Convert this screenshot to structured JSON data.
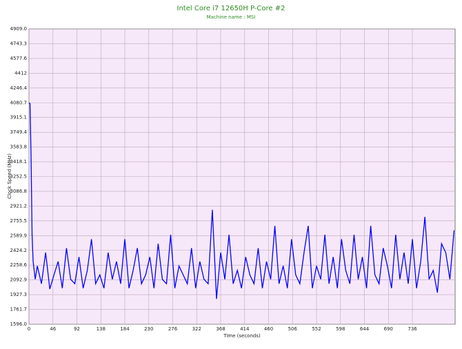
{
  "chart_data": {
    "type": "line",
    "title": "Intel Core i7 12650H P-Core #2",
    "subtitle": "Machine name : MSI",
    "x_label": "Time (seconds)",
    "y_label": "Clock Speed (MHz)",
    "color": "#0000ff",
    "grid": true,
    "xlim": [
      0,
      818
    ],
    "xticks": [
      0,
      46,
      92,
      138,
      184,
      230,
      276,
      322,
      368,
      414,
      460,
      506,
      552,
      598,
      644,
      690,
      736
    ],
    "ylim": [
      1596,
      4909
    ],
    "yticks": [
      {
        "value": 1596,
        "label": "1596.0"
      },
      1761.7,
      1927.3,
      2092.9,
      2258.6,
      2424.2,
      2589.9,
      2755.5,
      2921.2,
      3086.8,
      3252.5,
      3418.1,
      3583.8,
      3749.4,
      3915.1,
      4080.7,
      4246.4,
      4412,
      4577.6,
      4743.3,
      {
        "value": 4909,
        "label": "4909.0"
      }
    ],
    "x": [
      0,
      2,
      4,
      6,
      8,
      12,
      16,
      24,
      32,
      40,
      48,
      56,
      64,
      72,
      80,
      88,
      96,
      104,
      112,
      120,
      128,
      136,
      144,
      152,
      160,
      168,
      176,
      184,
      192,
      200,
      208,
      216,
      224,
      232,
      240,
      248,
      256,
      264,
      272,
      280,
      288,
      296,
      304,
      312,
      320,
      328,
      336,
      344,
      352,
      360,
      368,
      376,
      384,
      392,
      400,
      408,
      416,
      424,
      432,
      440,
      448,
      456,
      464,
      472,
      480,
      488,
      496,
      504,
      512,
      520,
      528,
      536,
      544,
      552,
      560,
      568,
      576,
      584,
      592,
      600,
      608,
      616,
      624,
      632,
      640,
      648,
      656,
      664,
      672,
      680,
      688,
      696,
      704,
      712,
      720,
      728,
      736,
      744,
      752,
      760,
      768,
      776,
      784,
      792,
      800,
      808,
      816
    ],
    "values": [
      4080,
      4070,
      3500,
      2600,
      2300,
      2100,
      2250,
      2050,
      2400,
      1990,
      2150,
      2300,
      2000,
      2450,
      2100,
      2050,
      2350,
      2000,
      2200,
      2550,
      2050,
      2150,
      2000,
      2400,
      2100,
      2300,
      2050,
      2550,
      2000,
      2200,
      2450,
      2050,
      2150,
      2350,
      2000,
      2500,
      2100,
      2050,
      2600,
      2000,
      2250,
      2150,
      2050,
      2450,
      2000,
      2300,
      2100,
      2050,
      2880,
      1880,
      2400,
      2100,
      2600,
      2050,
      2200,
      2000,
      2350,
      2150,
      2050,
      2450,
      2000,
      2300,
      2100,
      2700,
      2050,
      2250,
      2000,
      2550,
      2150,
      2050,
      2400,
      2700,
      2000,
      2250,
      2100,
      2600,
      2050,
      2350,
      2000,
      2550,
      2200,
      2050,
      2600,
      2100,
      2350,
      2000,
      2700,
      2150,
      2050,
      2450,
      2250,
      2000,
      2600,
      2100,
      2400,
      2050,
      2550,
      2000,
      2300,
      2800,
      2100,
      2200,
      1950,
      2500,
      2400,
      2100,
      2650
    ]
  }
}
